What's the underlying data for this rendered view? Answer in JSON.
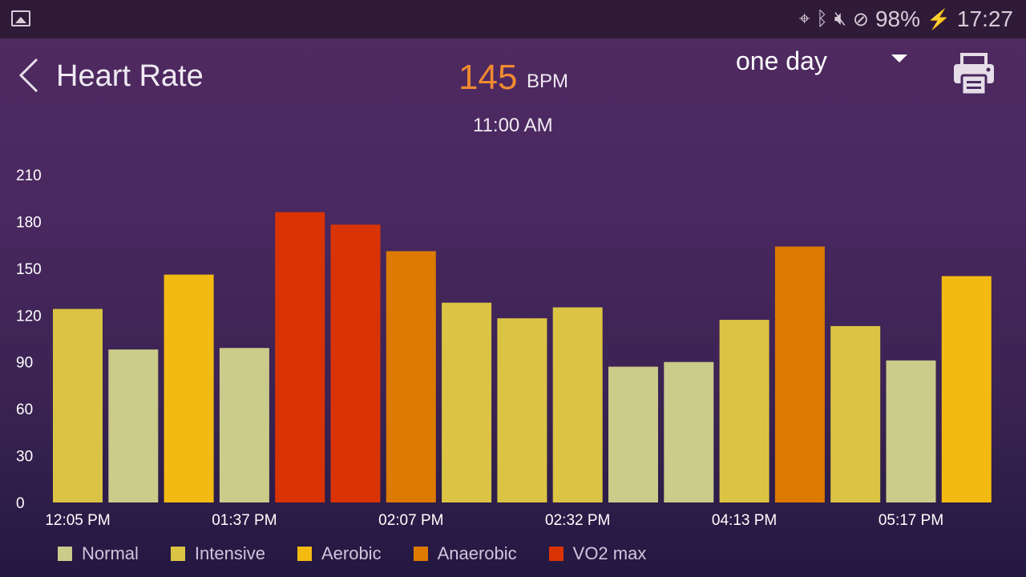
{
  "status_bar": {
    "battery": "98%",
    "time": "17:27",
    "icons": [
      "image-icon",
      "location-icon",
      "bluetooth-icon",
      "mute-vibrate-icon",
      "do-not-disturb-icon",
      "battery-charging-icon"
    ]
  },
  "header": {
    "title": "Heart Rate",
    "value": "145",
    "unit": "BPM",
    "time": "11:00 AM",
    "range": "one day"
  },
  "chart_data": {
    "type": "bar",
    "ylim": [
      0,
      210
    ],
    "yticks": [
      "0",
      "30",
      "60",
      "90",
      "120",
      "150",
      "180",
      "210"
    ],
    "xlabels": [
      "12:05 PM",
      "01:37 PM",
      "02:07 PM",
      "02:32 PM",
      "04:13 PM",
      "05:17 PM"
    ],
    "xlabel_bar_index": [
      0,
      3,
      6,
      9,
      12,
      15
    ],
    "values": [
      124,
      98,
      146,
      99,
      186,
      178,
      161,
      128,
      118,
      125,
      87,
      90,
      117,
      164,
      113,
      91,
      145
    ],
    "zones": [
      "Intensive",
      "Normal",
      "Aerobic",
      "Normal",
      "VO2 max",
      "VO2 max",
      "Anaerobic",
      "Intensive",
      "Intensive",
      "Intensive",
      "Normal",
      "Normal",
      "Intensive",
      "Anaerobic",
      "Intensive",
      "Normal",
      "Aerobic"
    ],
    "legend": [
      {
        "label": "Normal",
        "color": "#cbcb8a"
      },
      {
        "label": "Intensive",
        "color": "#dbc443"
      },
      {
        "label": "Aerobic",
        "color": "#f3bb12"
      },
      {
        "label": "Anaerobic",
        "color": "#dc7a02"
      },
      {
        "label": "VO2 max",
        "color": "#d93304"
      }
    ]
  }
}
